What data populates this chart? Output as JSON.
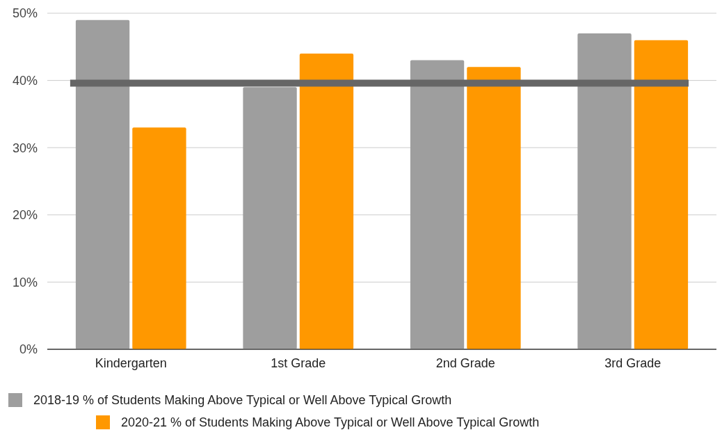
{
  "chart_data": {
    "type": "bar",
    "categories": [
      "Kindergarten",
      "1st Grade",
      "2nd Grade",
      "3rd Grade"
    ],
    "series": [
      {
        "name": "2018-19 % of Students Making Above Typical or Well Above Typical Growth",
        "color": "#9e9e9e",
        "values": [
          49,
          39,
          43,
          47
        ]
      },
      {
        "name": "2020-21 % of Students Making Above Typical or Well Above Typical Growth",
        "color": "#ff9800",
        "values": [
          33,
          44,
          42,
          46
        ]
      }
    ],
    "ylim": [
      0,
      50
    ],
    "yticks": [
      {
        "value": 0,
        "label": "0%"
      },
      {
        "value": 10,
        "label": "10%"
      },
      {
        "value": 20,
        "label": "20%"
      },
      {
        "value": 30,
        "label": "30%"
      },
      {
        "value": 40,
        "label": "40%"
      },
      {
        "value": 50,
        "label": "50%"
      }
    ],
    "ref_lines": [
      {
        "axis": "y",
        "value": 39.6,
        "color": "#666666"
      }
    ],
    "grid": "y",
    "legend": "bottom"
  }
}
